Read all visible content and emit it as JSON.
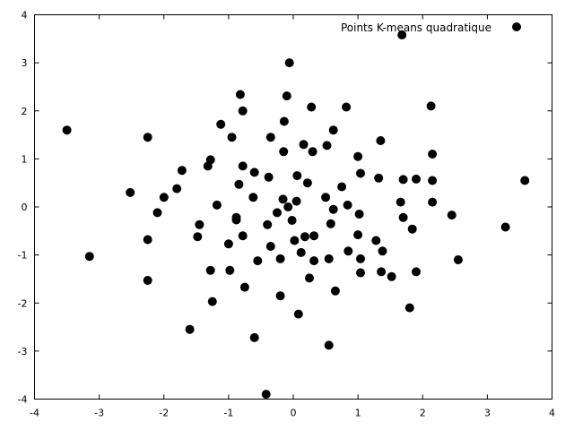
{
  "chart_data": {
    "type": "scatter",
    "title": "",
    "xlabel": "",
    "ylabel": "",
    "xlim": [
      -4,
      4
    ],
    "ylim": [
      -4,
      4
    ],
    "xticks": [
      "-4",
      "-3",
      "-2",
      "-1",
      "0",
      "1",
      "2",
      "3",
      "4"
    ],
    "yticks": [
      "-4",
      "-3",
      "-2",
      "-1",
      "0",
      "1",
      "2",
      "3",
      "4"
    ],
    "grid": false,
    "legend_position": "top-right",
    "marker_color": "#000000",
    "series": [
      {
        "name": "Points K-means quadratique",
        "points": [
          [
            -3.5,
            1.6
          ],
          [
            -3.15,
            -1.03
          ],
          [
            -2.52,
            0.3
          ],
          [
            -2.25,
            1.45
          ],
          [
            -2.25,
            -0.68
          ],
          [
            -2.25,
            -1.53
          ],
          [
            -2.1,
            -0.12
          ],
          [
            -2.0,
            0.2
          ],
          [
            -1.8,
            0.38
          ],
          [
            -1.72,
            0.76
          ],
          [
            -1.6,
            -2.55
          ],
          [
            -1.48,
            -0.62
          ],
          [
            -1.45,
            -0.37
          ],
          [
            -1.32,
            0.85
          ],
          [
            -1.28,
            0.98
          ],
          [
            -1.28,
            -1.32
          ],
          [
            -1.25,
            -1.97
          ],
          [
            -1.18,
            0.04
          ],
          [
            -1.12,
            1.72
          ],
          [
            -1.0,
            -0.77
          ],
          [
            -0.98,
            -1.32
          ],
          [
            -0.95,
            1.45
          ],
          [
            -0.88,
            -0.27
          ],
          [
            -0.88,
            -0.22
          ],
          [
            -0.84,
            0.47
          ],
          [
            -0.82,
            2.34
          ],
          [
            -0.78,
            2.0
          ],
          [
            -0.78,
            0.85
          ],
          [
            -0.78,
            -0.6
          ],
          [
            -0.75,
            -1.67
          ],
          [
            -0.62,
            0.2
          ],
          [
            -0.6,
            0.72
          ],
          [
            -0.6,
            -2.72
          ],
          [
            -0.55,
            -1.12
          ],
          [
            -0.42,
            -3.9
          ],
          [
            -0.4,
            -0.37
          ],
          [
            -0.38,
            0.62
          ],
          [
            -0.35,
            1.45
          ],
          [
            -0.35,
            -0.82
          ],
          [
            -0.25,
            -0.12
          ],
          [
            -0.2,
            -1.85
          ],
          [
            -0.2,
            -1.08
          ],
          [
            -0.16,
            0.16
          ],
          [
            -0.15,
            1.15
          ],
          [
            -0.14,
            1.78
          ],
          [
            -0.1,
            2.31
          ],
          [
            -0.08,
            0.0
          ],
          [
            -0.06,
            3.0
          ],
          [
            -0.02,
            -0.28
          ],
          [
            0.02,
            -0.7
          ],
          [
            0.05,
            0.12
          ],
          [
            0.06,
            0.65
          ],
          [
            0.08,
            -2.23
          ],
          [
            0.12,
            -0.95
          ],
          [
            0.16,
            1.3
          ],
          [
            0.18,
            -0.62
          ],
          [
            0.22,
            0.5
          ],
          [
            0.25,
            -1.48
          ],
          [
            0.28,
            2.08
          ],
          [
            0.3,
            1.15
          ],
          [
            0.32,
            -0.6
          ],
          [
            0.32,
            -1.12
          ],
          [
            0.5,
            0.2
          ],
          [
            0.52,
            1.28
          ],
          [
            0.55,
            -1.08
          ],
          [
            0.55,
            -2.88
          ],
          [
            0.58,
            -0.35
          ],
          [
            0.62,
            -0.05
          ],
          [
            0.62,
            1.6
          ],
          [
            0.65,
            -1.75
          ],
          [
            0.75,
            0.42
          ],
          [
            0.82,
            2.08
          ],
          [
            0.84,
            0.04
          ],
          [
            0.85,
            -0.92
          ],
          [
            1.0,
            -0.58
          ],
          [
            1.0,
            1.05
          ],
          [
            1.02,
            -0.15
          ],
          [
            1.04,
            -1.08
          ],
          [
            1.04,
            0.7
          ],
          [
            1.04,
            -1.37
          ],
          [
            1.28,
            -0.7
          ],
          [
            1.32,
            0.6
          ],
          [
            1.35,
            1.38
          ],
          [
            1.36,
            -1.35
          ],
          [
            1.38,
            -0.92
          ],
          [
            1.52,
            -1.45
          ],
          [
            1.66,
            0.1
          ],
          [
            1.68,
            3.58
          ],
          [
            1.7,
            0.57
          ],
          [
            1.7,
            -0.22
          ],
          [
            1.8,
            -2.1
          ],
          [
            1.84,
            -0.46
          ],
          [
            1.9,
            0.58
          ],
          [
            1.9,
            -1.35
          ],
          [
            2.13,
            2.1
          ],
          [
            2.15,
            1.1
          ],
          [
            2.15,
            0.55
          ],
          [
            2.15,
            0.1
          ],
          [
            2.45,
            -0.17
          ],
          [
            2.55,
            -1.1
          ],
          [
            3.28,
            -0.42
          ],
          [
            3.58,
            0.55
          ]
        ]
      }
    ]
  }
}
